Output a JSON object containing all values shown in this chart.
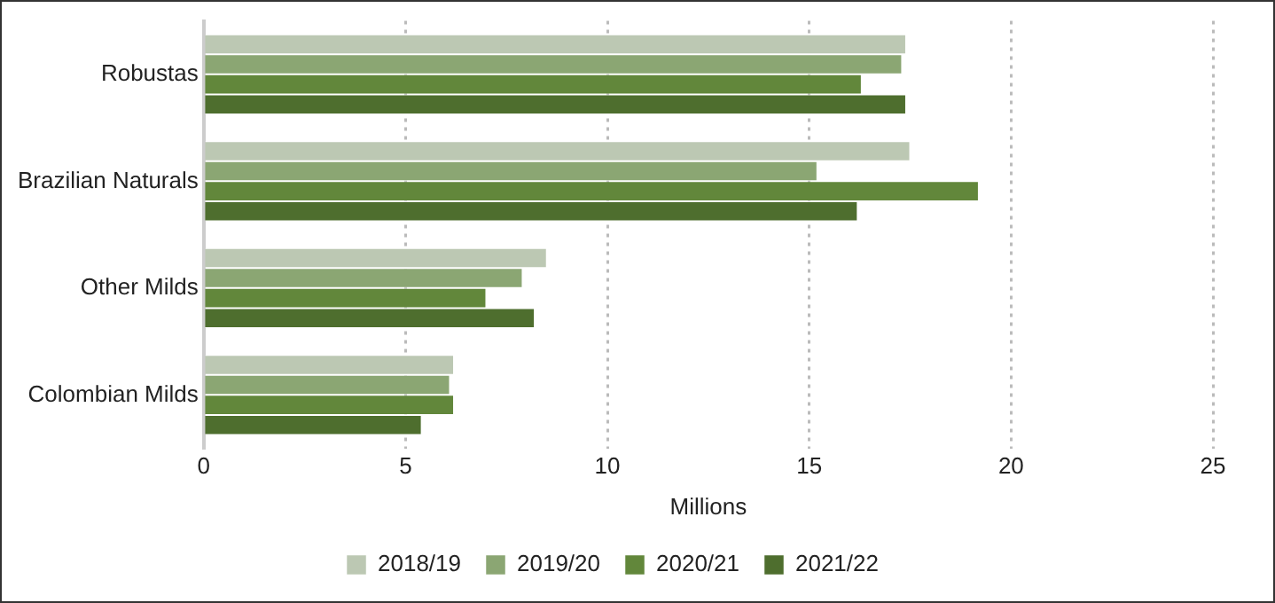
{
  "chart_data": {
    "type": "bar",
    "orientation": "horizontal",
    "xlabel": "Millions",
    "categories": [
      "Robustas",
      "Brazilian Naturals",
      "Other Milds",
      "Colombian Milds"
    ],
    "series": [
      {
        "name": "2018/19",
        "color": "#bcc8b3",
        "values": [
          17.4,
          17.5,
          8.5,
          6.2
        ]
      },
      {
        "name": "2019/20",
        "color": "#8ba673",
        "values": [
          17.3,
          15.2,
          7.9,
          6.1
        ]
      },
      {
        "name": "2020/21",
        "color": "#62873b",
        "values": [
          16.3,
          19.2,
          7.0,
          6.2
        ]
      },
      {
        "name": "2021/22",
        "color": "#4e6e2e",
        "values": [
          17.4,
          16.2,
          8.2,
          5.4
        ]
      }
    ],
    "xlim": [
      0,
      25
    ],
    "xticks": [
      0,
      5,
      10,
      15,
      20,
      25
    ],
    "grid": "x",
    "legend": "bottom"
  }
}
